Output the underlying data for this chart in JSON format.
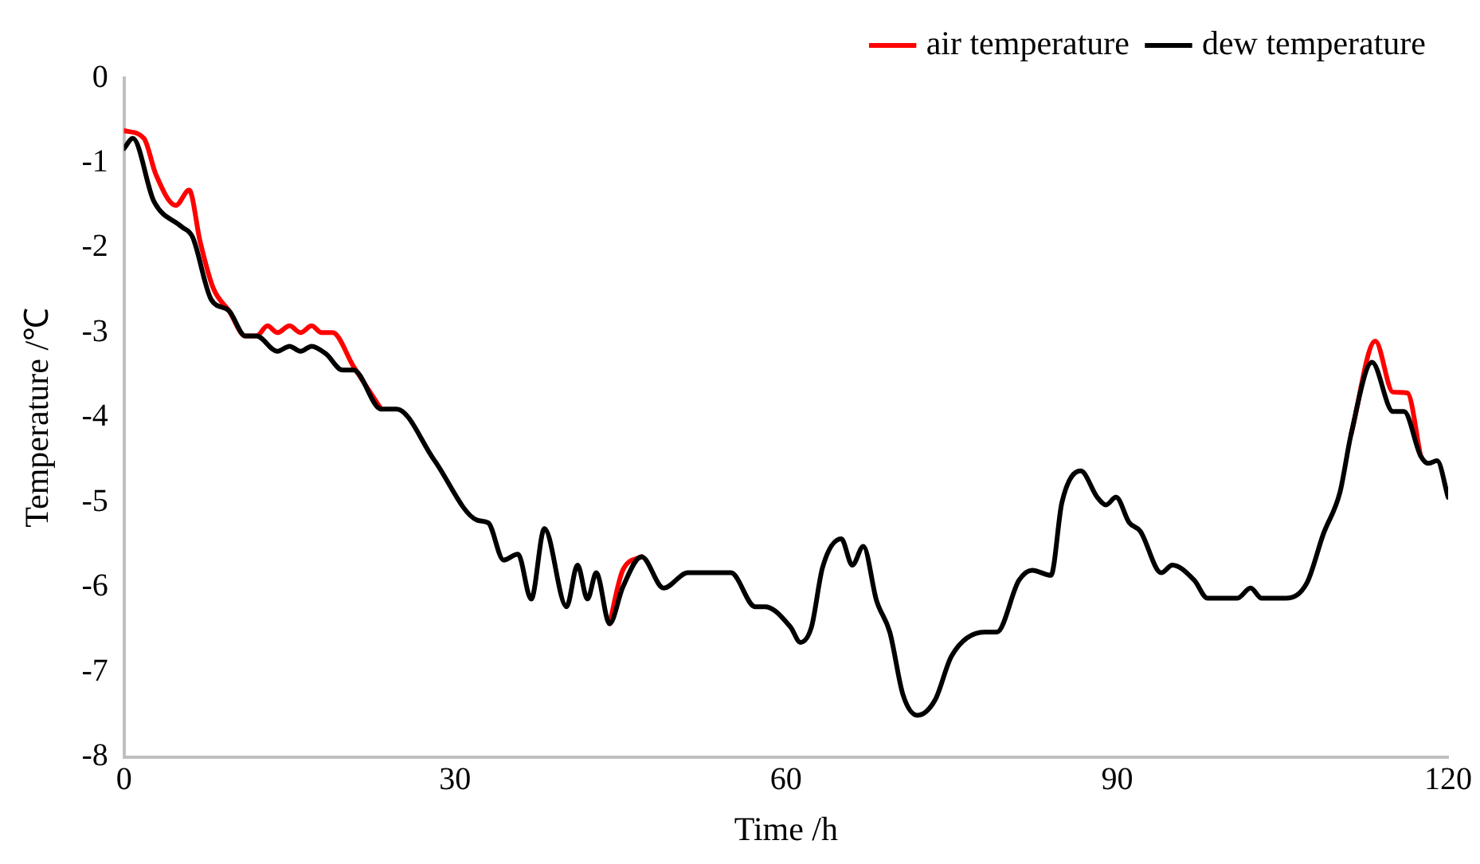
{
  "chart_data": {
    "type": "line",
    "xlabel": "Time /h",
    "ylabel": "Temperature /℃",
    "xlim": [
      0,
      120
    ],
    "xticks": [
      0,
      30,
      60,
      90,
      120
    ],
    "ylim": [
      -8,
      0
    ],
    "yticks": [
      0,
      -1,
      -2,
      -3,
      -4,
      -5,
      -6,
      -7,
      -8
    ],
    "grid": false,
    "legend": "top right",
    "marker": "none",
    "line_style": "solid",
    "series": [
      {
        "name": "air temperature",
        "color": "#ff0000",
        "x": [
          0,
          1.8,
          2.9,
          4.7,
          5.9,
          6.9,
          8.1,
          9.5,
          11,
          12,
          13,
          13.9,
          15,
          16,
          17,
          17.9,
          18.9,
          20.8,
          23.3,
          24.7,
          44,
          45.2,
          46.9,
          48.9,
          111.2,
          113.4,
          115,
          116.3,
          117.5
        ],
        "values": [
          -0.62,
          -0.71,
          -1.14,
          -1.5,
          -1.32,
          -1.93,
          -2.48,
          -2.74,
          -3.04,
          -3.04,
          -2.92,
          -3.0,
          -2.92,
          -3.0,
          -2.92,
          -3.0,
          -3.0,
          -3.4,
          -3.9,
          null,
          -6.43,
          -5.8,
          -5.64,
          null,
          -4.2,
          -3.1,
          -3.7,
          -3.71,
          -4.45
        ]
      },
      {
        "name": "dew temperature",
        "color": "#000000",
        "x": [
          0,
          0.8,
          2.7,
          5.2,
          6.2,
          7.9,
          9.5,
          11,
          12,
          13.9,
          15,
          16,
          17,
          18.3,
          19.8,
          20.8,
          23.3,
          24.7,
          28.1,
          32,
          33,
          34.4,
          35.7,
          36.9,
          38.1,
          40.1,
          41.1,
          42,
          42.8,
          44,
          45.2,
          46.9,
          48.9,
          51.1,
          55,
          57.2,
          58.1,
          60.4,
          61.3,
          62.3,
          63.3,
          65,
          66,
          67,
          68.2,
          69.4,
          70.6,
          71.9,
          73.5,
          75,
          78,
          79.1,
          81.1,
          82.3,
          84,
          85,
          86.7,
          88.2,
          89,
          89.9,
          91.1,
          92.1,
          94,
          95,
          97,
          98.2,
          100.9,
          102.1,
          103.1,
          105.3,
          107.2,
          108.7,
          110.2,
          111.2,
          113.1,
          115,
          116,
          117.5,
          118.2,
          119,
          120
        ],
        "values": [
          -0.83,
          -0.71,
          -1.45,
          -1.75,
          -1.87,
          -2.61,
          -2.74,
          -3.04,
          -3.04,
          -3.22,
          -3.16,
          -3.22,
          -3.16,
          -3.25,
          -3.44,
          -3.44,
          -3.9,
          -3.9,
          -4.5,
          -5.21,
          -5.24,
          -5.68,
          -5.61,
          -6.14,
          -5.31,
          -6.23,
          -5.74,
          -6.14,
          -5.83,
          -6.43,
          -6.0,
          -5.64,
          -6.01,
          -5.83,
          -5.83,
          -6.23,
          -6.23,
          -6.47,
          -6.65,
          -6.47,
          -5.77,
          -5.43,
          -5.74,
          -5.52,
          -6.16,
          -6.53,
          -7.27,
          -7.51,
          -7.33,
          -6.81,
          -6.53,
          -6.53,
          -5.92,
          -5.8,
          -5.86,
          -5.0,
          -4.63,
          -4.94,
          -5.03,
          -4.94,
          -5.24,
          -5.34,
          -5.83,
          -5.74,
          -5.92,
          -6.13,
          -6.13,
          -6.01,
          -6.13,
          -6.13,
          -5.95,
          -5.37,
          -4.88,
          -4.2,
          -3.35,
          -3.93,
          -3.93,
          -4.45,
          -4.54,
          -4.51,
          -4.94
        ]
      }
    ]
  }
}
